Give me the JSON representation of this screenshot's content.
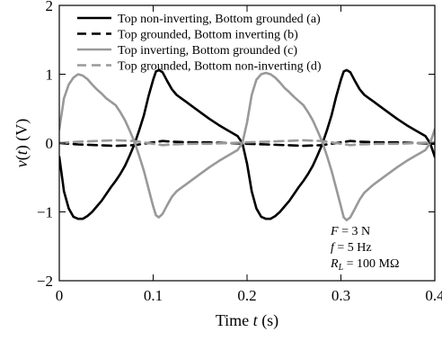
{
  "chart_data": {
    "type": "line",
    "xlabel": "Time t (s)",
    "ylabel": "v(t) (V)",
    "xlim": [
      0,
      0.4
    ],
    "ylim": [
      -2,
      2
    ],
    "xticks": [
      0,
      0.1,
      0.2,
      0.3,
      0.4
    ],
    "xtick_labels": [
      "0",
      "0.1",
      "0.2",
      "0.3",
      "0.4"
    ],
    "yticks": [
      -2,
      -1,
      0,
      1,
      2
    ],
    "ytick_labels": [
      "−2",
      "−1",
      "0",
      "1",
      "2"
    ],
    "grid": false,
    "legend_position": "top",
    "annotations": [
      "F = 3 N",
      "f = 5 Hz",
      "R_L = 100 MΩ"
    ],
    "series": [
      {
        "name": "Top non-inverting, Bottom grounded (a)",
        "color": "#000000",
        "dash": "solid",
        "x": [
          0,
          0.005,
          0.01,
          0.015,
          0.02,
          0.025,
          0.03,
          0.035,
          0.04,
          0.045,
          0.05,
          0.055,
          0.06,
          0.065,
          0.07,
          0.075,
          0.08,
          0.085,
          0.09,
          0.095,
          0.1,
          0.103,
          0.106,
          0.11,
          0.115,
          0.12,
          0.125,
          0.13,
          0.135,
          0.14,
          0.15,
          0.16,
          0.17,
          0.18,
          0.19,
          0.195,
          0.2,
          0.205,
          0.21,
          0.215,
          0.22,
          0.225,
          0.23,
          0.235,
          0.24,
          0.245,
          0.25,
          0.255,
          0.26,
          0.265,
          0.27,
          0.275,
          0.28,
          0.285,
          0.29,
          0.295,
          0.3,
          0.303,
          0.306,
          0.31,
          0.315,
          0.32,
          0.325,
          0.33,
          0.335,
          0.34,
          0.35,
          0.36,
          0.37,
          0.38,
          0.39,
          0.395,
          0.4
        ],
        "y": [
          -0.2,
          -0.7,
          -0.95,
          -1.07,
          -1.1,
          -1.1,
          -1.06,
          -1.0,
          -0.92,
          -0.84,
          -0.74,
          -0.64,
          -0.55,
          -0.45,
          -0.33,
          -0.18,
          -0.02,
          0.18,
          0.4,
          0.68,
          0.92,
          1.04,
          1.06,
          1.03,
          0.9,
          0.78,
          0.7,
          0.65,
          0.6,
          0.55,
          0.45,
          0.35,
          0.26,
          0.18,
          0.1,
          0.0,
          -0.3,
          -0.7,
          -0.95,
          -1.07,
          -1.1,
          -1.1,
          -1.06,
          -1.0,
          -0.92,
          -0.84,
          -0.74,
          -0.64,
          -0.55,
          -0.45,
          -0.33,
          -0.18,
          -0.02,
          0.18,
          0.4,
          0.68,
          0.92,
          1.04,
          1.06,
          1.03,
          0.9,
          0.78,
          0.7,
          0.65,
          0.6,
          0.55,
          0.45,
          0.35,
          0.26,
          0.18,
          0.1,
          0.0,
          -0.2
        ]
      },
      {
        "name": "Top grounded, Bottom inverting (b)",
        "color": "#000000",
        "dash": "dashed",
        "x": [
          0,
          0.02,
          0.04,
          0.06,
          0.08,
          0.1,
          0.11,
          0.12,
          0.14,
          0.16,
          0.18,
          0.2,
          0.22,
          0.24,
          0.26,
          0.28,
          0.3,
          0.31,
          0.32,
          0.34,
          0.36,
          0.38,
          0.4
        ],
        "y": [
          0.0,
          -0.02,
          -0.03,
          -0.04,
          -0.03,
          0.01,
          0.03,
          0.02,
          0.01,
          0.01,
          0.0,
          -0.01,
          -0.02,
          -0.03,
          -0.04,
          -0.03,
          0.01,
          0.03,
          0.02,
          0.01,
          0.01,
          0.0,
          -0.01
        ]
      },
      {
        "name": "Top inverting, Bottom grounded (c)",
        "color": "#999999",
        "dash": "solid",
        "x": [
          0,
          0.005,
          0.01,
          0.015,
          0.02,
          0.025,
          0.03,
          0.035,
          0.04,
          0.045,
          0.05,
          0.055,
          0.06,
          0.065,
          0.07,
          0.075,
          0.08,
          0.085,
          0.09,
          0.095,
          0.1,
          0.103,
          0.106,
          0.11,
          0.115,
          0.12,
          0.125,
          0.13,
          0.135,
          0.14,
          0.15,
          0.16,
          0.17,
          0.18,
          0.19,
          0.195,
          0.2,
          0.205,
          0.21,
          0.215,
          0.22,
          0.225,
          0.23,
          0.235,
          0.24,
          0.245,
          0.25,
          0.255,
          0.26,
          0.265,
          0.27,
          0.275,
          0.28,
          0.285,
          0.29,
          0.295,
          0.3,
          0.303,
          0.306,
          0.31,
          0.315,
          0.32,
          0.325,
          0.33,
          0.335,
          0.34,
          0.35,
          0.36,
          0.37,
          0.38,
          0.39,
          0.395,
          0.4
        ],
        "y": [
          0.2,
          0.65,
          0.85,
          0.95,
          1.0,
          0.98,
          0.93,
          0.85,
          0.78,
          0.72,
          0.65,
          0.6,
          0.55,
          0.45,
          0.33,
          0.18,
          0.02,
          -0.18,
          -0.4,
          -0.66,
          -0.92,
          -1.05,
          -1.08,
          -1.03,
          -0.9,
          -0.78,
          -0.7,
          -0.65,
          -0.6,
          -0.55,
          -0.45,
          -0.35,
          -0.26,
          -0.18,
          -0.1,
          0.0,
          0.3,
          0.7,
          0.92,
          1.0,
          1.02,
          1.0,
          0.95,
          0.88,
          0.8,
          0.74,
          0.67,
          0.61,
          0.55,
          0.45,
          0.33,
          0.18,
          0.02,
          -0.18,
          -0.4,
          -0.66,
          -0.92,
          -1.08,
          -1.12,
          -1.08,
          -0.95,
          -0.82,
          -0.72,
          -0.66,
          -0.6,
          -0.55,
          -0.45,
          -0.35,
          -0.26,
          -0.18,
          -0.1,
          0.0,
          0.2
        ]
      },
      {
        "name": "Top grounded, Bottom non-inverting (d)",
        "color": "#999999",
        "dash": "dashed",
        "x": [
          0,
          0.02,
          0.04,
          0.06,
          0.08,
          0.1,
          0.11,
          0.12,
          0.14,
          0.16,
          0.18,
          0.2,
          0.22,
          0.24,
          0.26,
          0.28,
          0.3,
          0.31,
          0.32,
          0.34,
          0.36,
          0.38,
          0.4
        ],
        "y": [
          0.0,
          0.02,
          0.03,
          0.04,
          0.03,
          -0.01,
          -0.03,
          -0.02,
          -0.01,
          -0.01,
          0.0,
          0.01,
          0.02,
          0.03,
          0.04,
          0.03,
          -0.01,
          -0.03,
          -0.02,
          -0.01,
          -0.01,
          0.0,
          0.01
        ]
      }
    ]
  }
}
